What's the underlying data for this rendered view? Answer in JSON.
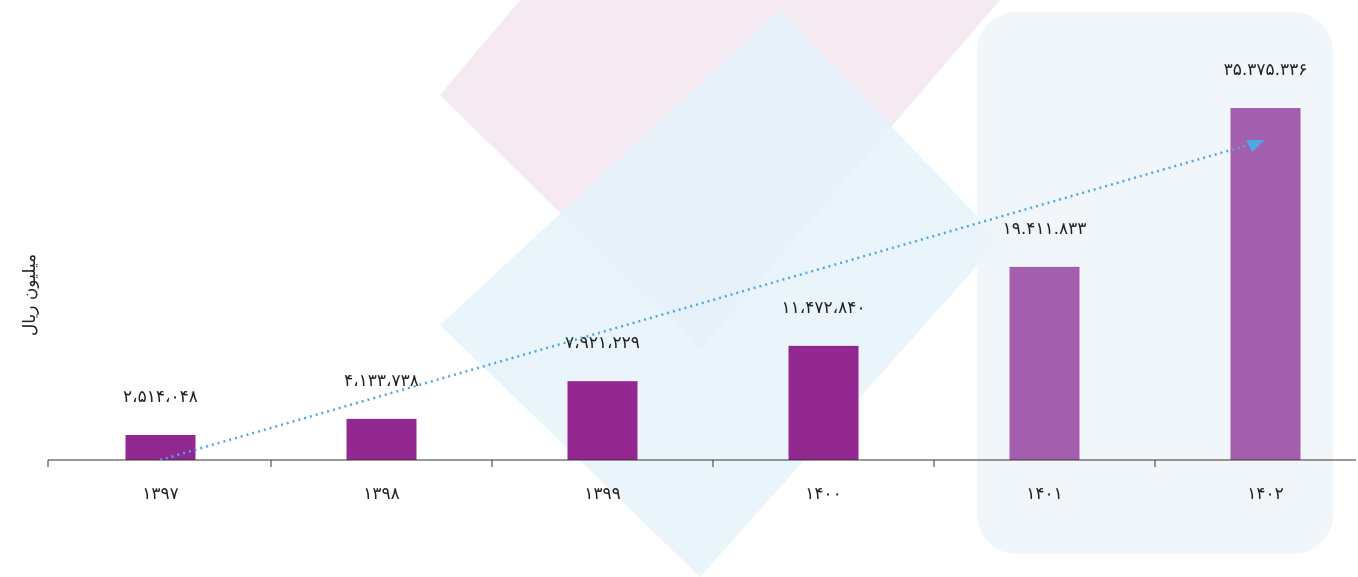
{
  "chart_data": {
    "type": "bar",
    "y_label": "میلیون ریال",
    "categories": [
      "۱۳۹۷",
      "۱۳۹۸",
      "۱۳۹۹",
      "۱۴۰۰",
      "۱۴۰۱",
      "۱۴۰۲"
    ],
    "values": [
      2514048,
      4133738,
      7921229,
      11472840,
      19411833,
      35375336
    ],
    "value_labels": [
      "۲،۵۱۴،۰۴۸",
      "۴،۱۳۳،۷۳۸",
      "۷،۹۲۱،۲۲۹",
      "۱۱،۴۷۲،۸۴۰",
      "۱۹.۴۱۱.۸۳۳",
      "۳۵.۳۷۵.۳۳۶"
    ],
    "colors": [
      "#92278f",
      "#92278f",
      "#92278f",
      "#92278f",
      "#a35fae",
      "#a35fae"
    ],
    "ylim": [
      0,
      40000000
    ]
  }
}
